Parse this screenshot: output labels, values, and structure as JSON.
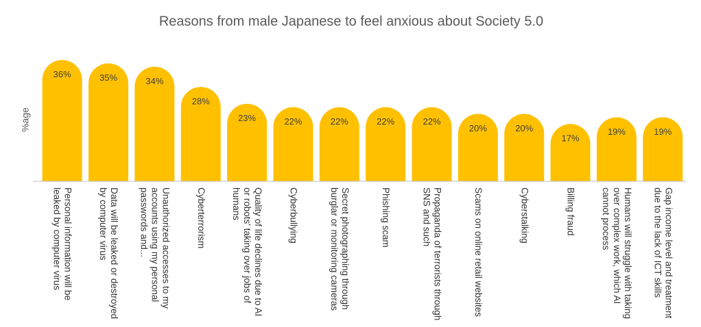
{
  "chart_data": {
    "type": "bar",
    "title": "Reasons from male Japanese to feel anxious about Society 5.0",
    "y_label": "%age",
    "categories": [
      "Personal information will be leaked by computer virus",
      "Data will be leaked or destroyed by computer virus",
      "Unauthorized accesses to my accounts using my personal passwords and...",
      "Cyberterrorism",
      "Quality of life declines due to AI or robots' taking over jobs of humans",
      "Cyberbullying",
      "Secret photographing through burglar or monitoring cameras",
      "Phishing scam",
      "Propaganda of terrorists through SNS and such",
      "Scams on online retail websites",
      "Cyberstalking",
      "Billing fraud",
      "Humans will struggle with taking over complex work, which AI cannot process",
      "Gap income level and treatment due to the lack of ICT skills"
    ],
    "values": [
      36,
      35,
      34,
      28,
      23,
      22,
      22,
      22,
      22,
      20,
      20,
      17,
      19,
      19
    ],
    "value_labels": [
      "36%",
      "35%",
      "34%",
      "28%",
      "23%",
      "22%",
      "22%",
      "22%",
      "22%",
      "20%",
      "20%",
      "17%",
      "19%",
      "19%"
    ],
    "color": "#FFC000",
    "ylim": [
      0,
      40
    ]
  }
}
